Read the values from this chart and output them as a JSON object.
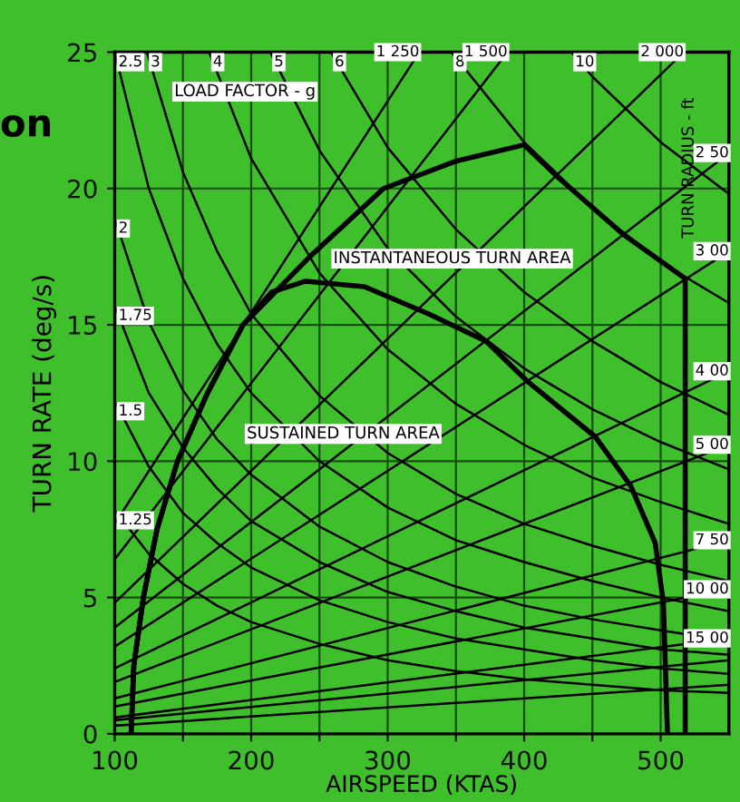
{
  "chart_data": {
    "type": "line",
    "title": "on",
    "xlabel": "AIRSPEED (KTAS)",
    "ylabel": "TURN RATE (deg/s)",
    "xlim": [
      100,
      550
    ],
    "ylim": [
      0,
      25
    ],
    "xticks": [
      100,
      {
        "value": 150,
        "label": null
      },
      200,
      {
        "value": 250,
        "label": null
      },
      300,
      {
        "value": 350,
        "label": null
      },
      400,
      {
        "value": 450,
        "label": null
      },
      500
    ],
    "yticks": [
      0,
      5,
      10,
      15,
      20,
      25
    ],
    "grid": true,
    "legend": false,
    "annotations": [
      "LOAD FACTOR - g",
      "INSTANTANEOUS TURN AREA",
      "SUSTAINED TURN AREA",
      "TURN RADIUS - ft"
    ],
    "series": [
      {
        "color": "#000000",
        "x": [
          112,
          114,
          121,
          131,
          146,
          168,
          194,
          243,
          297,
          350,
          400,
          425,
          473,
          518,
          518
        ],
        "values": [
          0,
          2.5,
          5,
          7.5,
          10,
          12.5,
          15,
          17.5,
          20,
          21,
          21.6,
          20.4,
          18.3,
          16.7,
          0
        ]
      },
      {
        "color": "#000000",
        "x": [
          112,
          114,
          121,
          131,
          146,
          168,
          194,
          215,
          240,
          283,
          330,
          372,
          403,
          452,
          478,
          496,
          502,
          505
        ],
        "values": [
          0,
          2.5,
          5,
          7.5,
          10,
          12.5,
          15,
          16.2,
          16.6,
          16.4,
          15.4,
          14.4,
          12.9,
          10.9,
          9.1,
          7.0,
          4.8,
          0
        ]
      },
      {
        "name": "1.25",
        "color": "#000000",
        "x": [
          100,
          125,
          150,
          175,
          200,
          250,
          300,
          350,
          400,
          450,
          500,
          550
        ],
        "values": [
          8.2,
          6.6,
          5.5,
          4.7,
          4.1,
          3.3,
          2.7,
          2.3,
          2.0,
          1.8,
          1.6,
          1.5
        ]
      },
      {
        "name": "1.5",
        "color": "#000000",
        "x": [
          100,
          125,
          150,
          175,
          200,
          250,
          300,
          350,
          400,
          450,
          500,
          550
        ],
        "values": [
          12.2,
          9.8,
          8.1,
          7.0,
          6.1,
          4.9,
          4.1,
          3.5,
          3.1,
          2.7,
          2.4,
          2.2
        ]
      },
      {
        "name": "1.75",
        "color": "#000000",
        "x": [
          100,
          125,
          150,
          175,
          200,
          250,
          300,
          350,
          400,
          450,
          500,
          550
        ],
        "values": [
          15.7,
          12.5,
          10.5,
          9.0,
          7.8,
          6.3,
          5.2,
          4.5,
          3.9,
          3.5,
          3.1,
          2.9
        ]
      },
      {
        "name": "2",
        "color": "#000000",
        "x": [
          100,
          125,
          150,
          175,
          200,
          250,
          300,
          350,
          400,
          450,
          500,
          550
        ],
        "values": [
          18.9,
          15.1,
          12.6,
          10.8,
          9.5,
          7.6,
          6.3,
          5.4,
          4.7,
          4.2,
          3.8,
          3.4
        ]
      },
      {
        "name": "2.5",
        "color": "#000000",
        "x": [
          100,
          125,
          150,
          175,
          200,
          250,
          300,
          350,
          400,
          450,
          500,
          550
        ],
        "values": [
          25.0,
          20.0,
          16.7,
          14.3,
          12.5,
          10.0,
          8.3,
          7.1,
          6.3,
          5.6,
          5.0,
          4.5
        ]
      },
      {
        "name": "3",
        "color": "#000000",
        "x": [
          123.6,
          150,
          175,
          200,
          250,
          300,
          350,
          400,
          450,
          500,
          550
        ],
        "values": [
          25.0,
          20.6,
          17.7,
          15.4,
          12.4,
          10.3,
          8.8,
          7.7,
          6.9,
          6.2,
          5.6
        ]
      },
      {
        "name": "4",
        "color": "#000000",
        "x": [
          169.2,
          200,
          250,
          300,
          350,
          400,
          450,
          500,
          550
        ],
        "values": [
          25.0,
          21.1,
          16.9,
          14.1,
          12.1,
          10.6,
          9.4,
          8.5,
          7.7
        ]
      },
      {
        "name": "5",
        "color": "#000000",
        "x": [
          214,
          250,
          300,
          350,
          400,
          450,
          500,
          550
        ],
        "values": [
          25.0,
          21.4,
          17.8,
          15.3,
          13.4,
          11.9,
          10.7,
          9.7
        ]
      },
      {
        "name": "6",
        "color": "#000000",
        "x": [
          258.4,
          300,
          350,
          400,
          450,
          500,
          550
        ],
        "values": [
          25.0,
          21.5,
          18.5,
          16.2,
          14.4,
          12.9,
          11.7
        ]
      },
      {
        "name": "8",
        "color": "#000000",
        "x": [
          346.7,
          400,
          450,
          500,
          550
        ],
        "values": [
          25.0,
          21.7,
          19.3,
          17.3,
          15.8
        ]
      },
      {
        "name": "10",
        "color": "#000000",
        "x": [
          434.6,
          450,
          500,
          550
        ],
        "values": [
          25.0,
          24.1,
          21.7,
          19.8
        ]
      },
      {
        "name": "1 250",
        "color": "#000000",
        "x": [
          100,
          323.2
        ],
        "values": [
          7.7,
          25.0
        ]
      },
      {
        "name": "1 500",
        "color": "#000000",
        "x": [
          100,
          387.8
        ],
        "values": [
          6.4,
          25.0
        ]
      },
      {
        "name": "2 000",
        "color": "#000000",
        "x": [
          100,
          517
        ],
        "values": [
          4.8,
          25.0
        ]
      },
      {
        "name": "2 50",
        "color": "#000000",
        "x": [
          100,
          550
        ],
        "values": [
          3.9,
          21.3
        ]
      },
      {
        "name": "3 00",
        "color": "#000000",
        "x": [
          100,
          550
        ],
        "values": [
          3.2,
          17.7
        ]
      },
      {
        "name": "4 00",
        "color": "#000000",
        "x": [
          100,
          550
        ],
        "values": [
          2.4,
          13.3
        ]
      },
      {
        "name": "5 00",
        "color": "#000000",
        "x": [
          100,
          550
        ],
        "values": [
          1.9,
          10.6
        ]
      },
      {
        "name": "7 50",
        "color": "#000000",
        "x": [
          100,
          550
        ],
        "values": [
          1.3,
          7.1
        ]
      },
      {
        "name": "10 00",
        "color": "#000000",
        "x": [
          100,
          550
        ],
        "values": [
          1.0,
          5.3
        ]
      },
      {
        "name": "15 00",
        "color": "#000000",
        "x": [
          100,
          550
        ],
        "values": [
          0.6,
          3.5
        ]
      },
      {
        "color": "#000000",
        "x": [
          100,
          550
        ],
        "values": [
          0.5,
          2.7
        ]
      },
      {
        "color": "#000000",
        "x": [
          100,
          550
        ],
        "values": [
          0.3,
          1.8
        ]
      }
    ]
  }
}
